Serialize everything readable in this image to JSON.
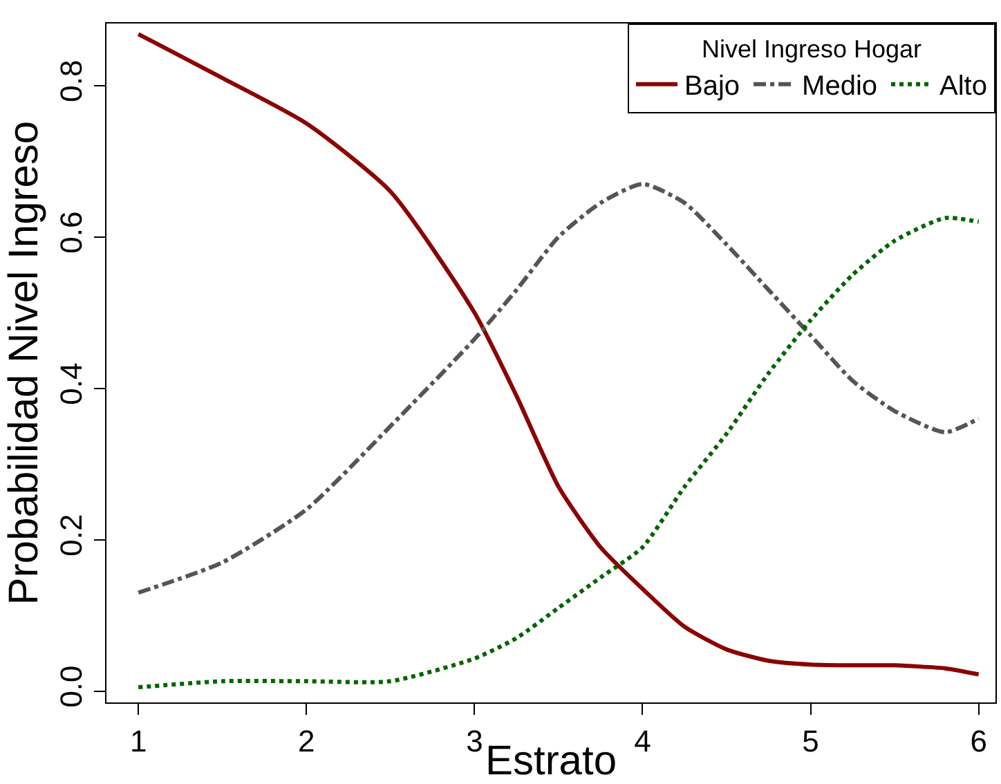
{
  "chart_data": {
    "type": "line",
    "xlabel": "Estrato",
    "ylabel": "Probabilidad Nivel Ingreso",
    "legend_title": "Nivel Ingreso Hogar",
    "x": [
      1,
      1.5,
      2,
      2.5,
      3,
      3.25,
      3.5,
      3.75,
      4,
      4.25,
      4.5,
      4.75,
      5,
      5.25,
      5.5,
      5.8,
      6
    ],
    "series": [
      {
        "name": "Bajo",
        "color": "#8b0000",
        "line_style": "solid",
        "values": [
          0.868,
          0.81,
          0.75,
          0.66,
          0.5,
          0.39,
          0.27,
          0.19,
          0.135,
          0.085,
          0.055,
          0.04,
          0.035,
          0.034,
          0.034,
          0.03,
          0.022
        ]
      },
      {
        "name": "Medio",
        "color": "#555555",
        "line_style": "dashdot",
        "values": [
          0.13,
          0.17,
          0.24,
          0.35,
          0.465,
          0.53,
          0.6,
          0.645,
          0.67,
          0.645,
          0.59,
          0.53,
          0.47,
          0.41,
          0.37,
          0.342,
          0.36
        ]
      },
      {
        "name": "Alto",
        "color": "#006400",
        "line_style": "dotted",
        "values": [
          0.005,
          0.013,
          0.013,
          0.013,
          0.043,
          0.07,
          0.11,
          0.15,
          0.19,
          0.27,
          0.34,
          0.42,
          0.49,
          0.55,
          0.595,
          0.625,
          0.62
        ]
      }
    ],
    "xlim": [
      0.81,
      6.1
    ],
    "xticks": [
      1,
      2,
      3,
      4,
      5,
      6
    ],
    "ylim": [
      -0.015,
      0.882
    ],
    "yticks": [
      {
        "value": 0,
        "label": "0.0"
      },
      0.2,
      0.4,
      0.6,
      0.8
    ],
    "grid": false,
    "legend": "top right",
    "marker": "none"
  }
}
